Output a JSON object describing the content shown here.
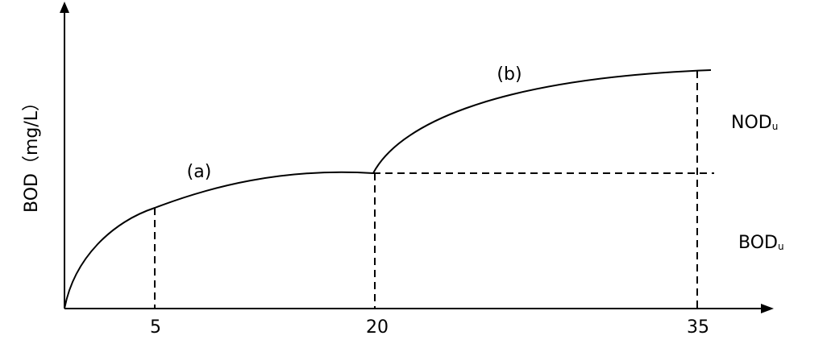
{
  "y_axis_label": "BOD（mg/L）",
  "x_ticks": [
    "5",
    "20",
    "35"
  ],
  "curve_labels": {
    "a": "(a)",
    "b": "(b)"
  },
  "region_labels": {
    "nod": {
      "main": "NOD",
      "sub": "u"
    },
    "bod": {
      "main": "BOD",
      "sub": "u"
    }
  },
  "colors": {
    "line": "#000000",
    "background": "#ffffff"
  }
}
